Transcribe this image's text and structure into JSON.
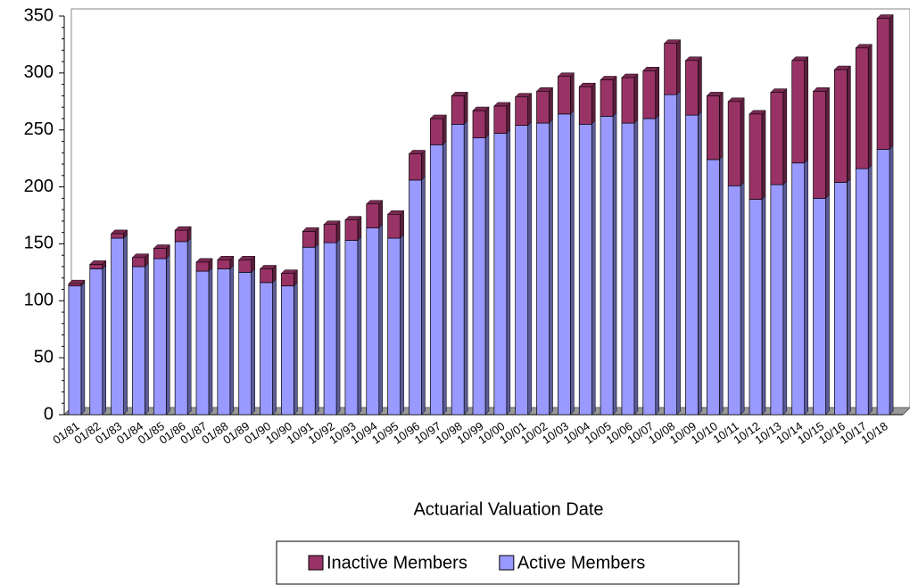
{
  "chart_data": {
    "type": "stacked_bar",
    "x_label": "Actuarial Valuation Date",
    "categories": [
      "01/81",
      "01/82",
      "01/83",
      "01/84",
      "01/85",
      "01/86",
      "01/87",
      "01/88",
      "01/89",
      "01/90",
      "10/90",
      "10/91",
      "10/92",
      "10/93",
      "10/94",
      "10/95",
      "10/96",
      "10/97",
      "10/98",
      "10/99",
      "10/00",
      "10/01",
      "10/02",
      "10/03",
      "10/04",
      "10/05",
      "10/06",
      "10/07",
      "10/08",
      "10/09",
      "10/10",
      "10/11",
      "10/12",
      "10/13",
      "10/14",
      "10/15",
      "10/16",
      "10/17",
      "10/18"
    ],
    "series": [
      {
        "name": "Active Members",
        "color": "#9999ff",
        "values": [
          113,
          128,
          155,
          130,
          137,
          152,
          126,
          128,
          125,
          116,
          113,
          147,
          151,
          153,
          164,
          155,
          206,
          237,
          255,
          243,
          247,
          254,
          256,
          264,
          255,
          262,
          256,
          260,
          281,
          263,
          224,
          201,
          189,
          202,
          221,
          190,
          204,
          216,
          233
        ]
      },
      {
        "name": "Inactive Members",
        "color": "#993366",
        "values": [
          2,
          4,
          4,
          8,
          9,
          10,
          8,
          8,
          11,
          12,
          11,
          14,
          16,
          18,
          21,
          21,
          23,
          23,
          25,
          24,
          24,
          25,
          28,
          33,
          33,
          32,
          40,
          42,
          45,
          48,
          56,
          74,
          75,
          81,
          90,
          94,
          99,
          106,
          115
        ]
      }
    ],
    "ylim": [
      0,
      350
    ],
    "yticks": [
      0,
      50,
      100,
      150,
      200,
      250,
      300,
      350
    ],
    "legend": "bottom"
  }
}
